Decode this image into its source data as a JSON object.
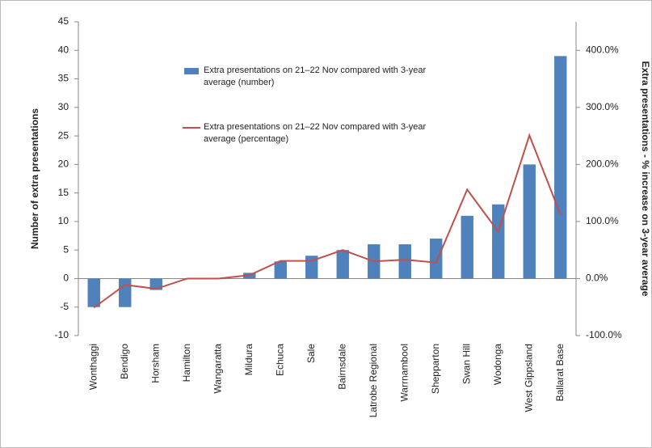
{
  "chart_data": {
    "type": "bar-line",
    "y_label": "Number of extra presentations",
    "y2_label": "Extra presentations - % increase on 3-year average",
    "categories": [
      "Wonthaggi",
      "Bendigo",
      "Horsham",
      "Hamilton",
      "Wangaratta",
      "Mildura",
      "Echuca",
      "Sale",
      "Bairnsdale",
      "Latrobe Regional",
      "Warrnambool",
      "Shepparton",
      "Swan Hill",
      "Wodonga",
      "West Gippsland",
      "Ballarat Base"
    ],
    "series": [
      {
        "name": "Extra presentations on 21–22 Nov compared with 3-year average (number)",
        "type": "bar",
        "color": "#4f81bd",
        "values": [
          -5,
          -5,
          -2,
          0,
          0,
          1,
          3,
          4,
          5,
          6,
          6,
          7,
          11,
          13,
          20,
          39
        ]
      },
      {
        "name": "Extra presentations on 21–22 Nov compared with 3-year average (percentage)",
        "type": "line",
        "color": "#c0504d",
        "axis": "y2",
        "values": [
          -51,
          -11,
          -18,
          0,
          0,
          6,
          31,
          31,
          50,
          30,
          33,
          28,
          156,
          82,
          251,
          112
        ]
      }
    ],
    "ylim": [
      -10,
      45
    ],
    "yticks": [
      -10,
      -5,
      0,
      5,
      10,
      15,
      20,
      25,
      30,
      35,
      40,
      45
    ],
    "y2lim": [
      -100,
      450
    ],
    "y2ticks": [
      {
        "value": -100,
        "label": "-100.0%"
      },
      {
        "value": 0,
        "label": "0.0%"
      },
      {
        "value": 100,
        "label": "100.0%"
      },
      {
        "value": 200,
        "label": "200.0%"
      },
      {
        "value": 300,
        "label": "300.0%"
      },
      {
        "value": 400,
        "label": "400.0%"
      }
    ],
    "grid": false
  }
}
